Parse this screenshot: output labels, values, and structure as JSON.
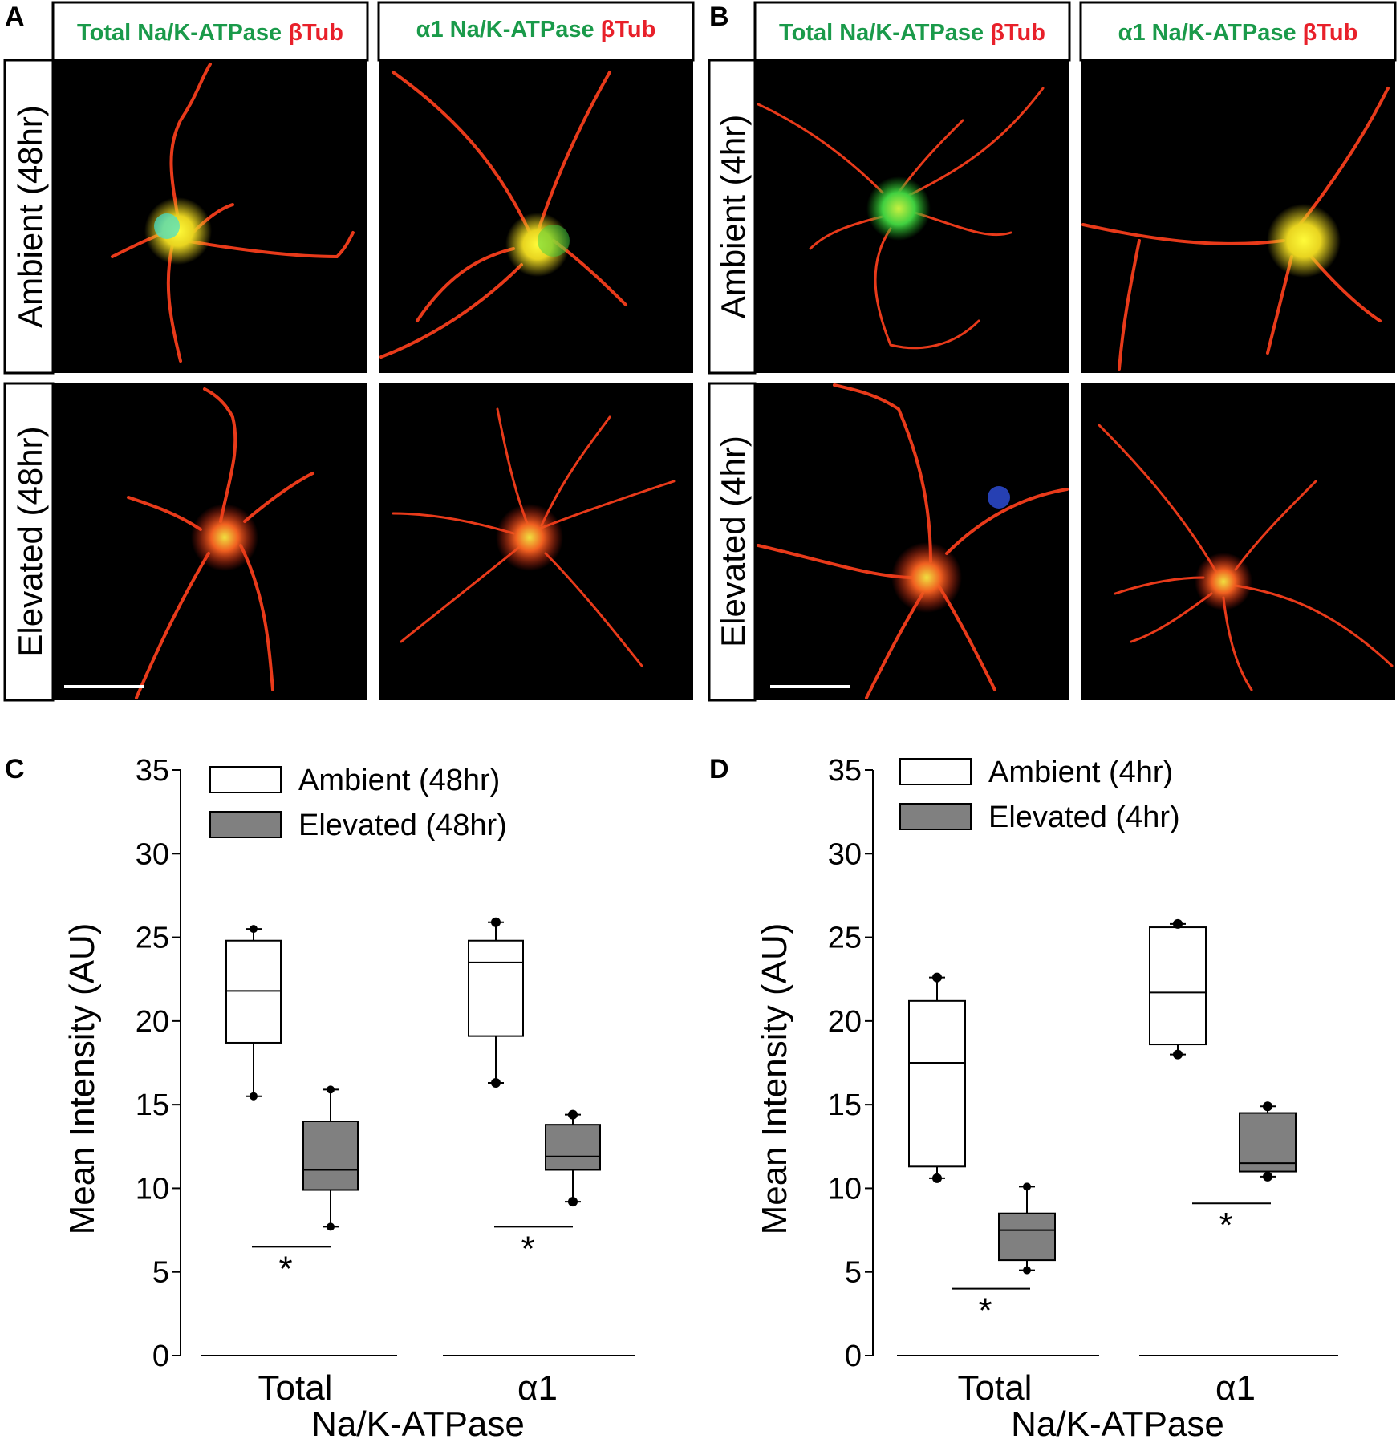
{
  "panels": {
    "A": {
      "letter": "A",
      "col_headers": [
        {
          "green": "Total Na/K-ATPase",
          "red": "βTub"
        },
        {
          "green": "α1 Na/K-ATPase",
          "red": "βTub"
        }
      ],
      "row_labels": [
        "Ambient (48hr)",
        "Elevated (48hr)"
      ]
    },
    "B": {
      "letter": "B",
      "col_headers": [
        {
          "green": "Total Na/K-ATPase",
          "red": "βTub"
        },
        {
          "green": "α1 Na/K-ATPase",
          "red": "βTub"
        }
      ],
      "row_labels": [
        "Ambient (4hr)",
        "Elevated (4hr)"
      ]
    }
  },
  "colors": {
    "green_label": "#1a9a4a",
    "red_label": "#e8202a",
    "ambient_fill": "#ffffff",
    "elevated_fill": "#808080"
  },
  "chart_data": [
    {
      "letter": "C",
      "type": "box",
      "ylabel": "Mean Intensity (AU)",
      "xlabel": "Na/K-ATPase",
      "categories": [
        "Total",
        "α1"
      ],
      "ylim": [
        0,
        35
      ],
      "yticks": [
        0,
        5,
        10,
        15,
        20,
        25,
        30,
        35
      ],
      "legend_position": "top-left",
      "series": [
        {
          "name": "Ambient (48hr)",
          "boxes": [
            {
              "whisker_low": 15.5,
              "q1": 18.7,
              "median": 21.8,
              "q3": 24.8,
              "whisker_high": 25.5,
              "outliers": []
            },
            {
              "whisker_low": 16.3,
              "q1": 19.1,
              "median": 23.5,
              "q3": 24.8,
              "whisker_high": 25.9,
              "outliers": [
                16.3,
                25.9
              ]
            }
          ]
        },
        {
          "name": "Elevated (48hr)",
          "boxes": [
            {
              "whisker_low": 7.7,
              "q1": 9.9,
              "median": 11.1,
              "q3": 14.0,
              "whisker_high": 15.9,
              "outliers": []
            },
            {
              "whisker_low": 9.2,
              "q1": 11.1,
              "median": 11.9,
              "q3": 13.8,
              "whisker_high": 14.4,
              "outliers": [
                9.2,
                14.4
              ]
            }
          ]
        }
      ],
      "significance": [
        {
          "label": "*",
          "y": 6.5
        },
        {
          "label": "*",
          "y": 7.7
        }
      ]
    },
    {
      "letter": "D",
      "type": "box",
      "ylabel": "Mean Intensity (AU)",
      "xlabel": "Na/K-ATPase",
      "categories": [
        "Total",
        "α1"
      ],
      "ylim": [
        0,
        35
      ],
      "yticks": [
        0,
        5,
        10,
        15,
        20,
        25,
        30,
        35
      ],
      "legend_position": "top-left",
      "series": [
        {
          "name": "Ambient (4hr)",
          "boxes": [
            {
              "whisker_low": 10.6,
              "q1": 11.3,
              "median": 17.5,
              "q3": 21.2,
              "whisker_high": 22.6,
              "outliers": [
                10.6,
                22.6
              ]
            },
            {
              "whisker_low": 18.0,
              "q1": 18.6,
              "median": 21.7,
              "q3": 25.6,
              "whisker_high": 25.8,
              "outliers": [
                18.0,
                25.8
              ]
            }
          ]
        },
        {
          "name": "Elevated (4hr)",
          "boxes": [
            {
              "whisker_low": 5.1,
              "q1": 5.7,
              "median": 7.5,
              "q3": 8.5,
              "whisker_high": 10.1,
              "outliers": []
            },
            {
              "whisker_low": 10.7,
              "q1": 11.0,
              "median": 11.5,
              "q3": 14.5,
              "whisker_high": 14.9,
              "outliers": [
                10.7,
                14.9
              ]
            }
          ]
        }
      ],
      "significance": [
        {
          "label": "*",
          "y": 4.0
        },
        {
          "label": "*",
          "y": 9.1
        }
      ]
    }
  ]
}
